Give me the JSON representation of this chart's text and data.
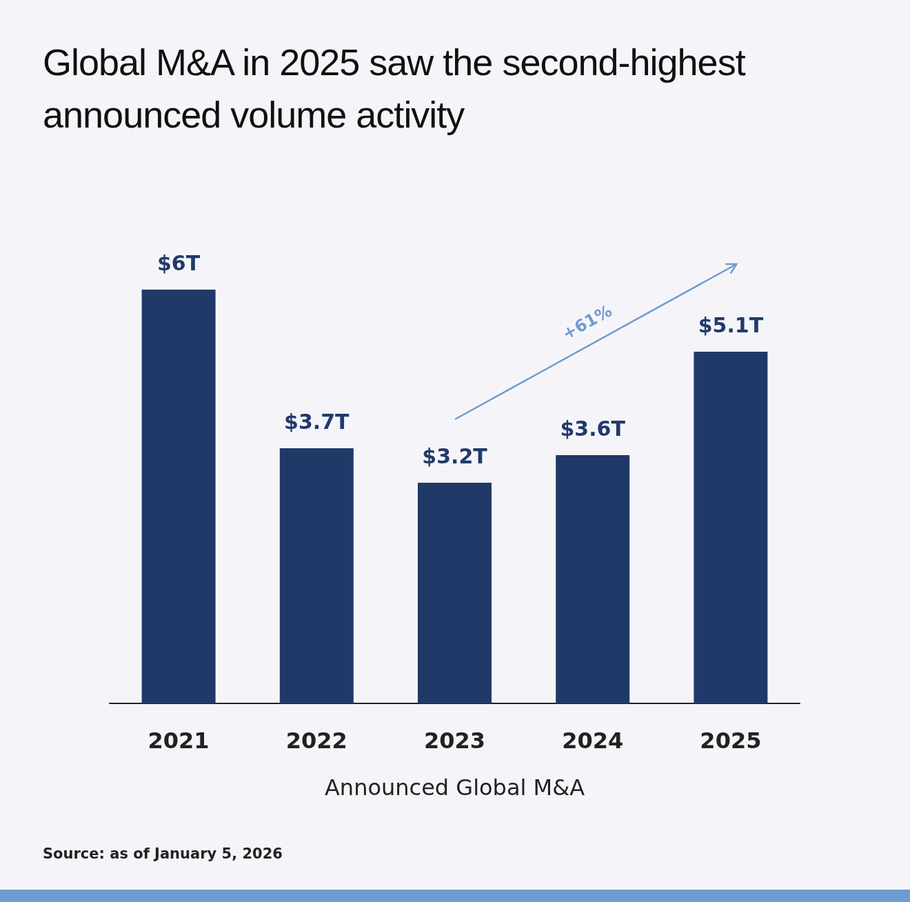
{
  "chart_data": {
    "type": "bar",
    "title": "Global M&A in 2025 saw the second-highest announced volume activity",
    "xlabel": "Announced Global M&A",
    "categories": [
      "2021",
      "2022",
      "2023",
      "2024",
      "2025"
    ],
    "values": [
      6,
      3.7,
      3.2,
      3.6,
      5.1
    ],
    "value_labels": [
      "$6T",
      "$3.7T",
      "$3.2T",
      "$3.6T",
      "$5.1T"
    ],
    "color": "#213968",
    "annotations": [
      "+61%",
      "Source: as of January 5, 2026"
    ],
    "grid": false
  }
}
